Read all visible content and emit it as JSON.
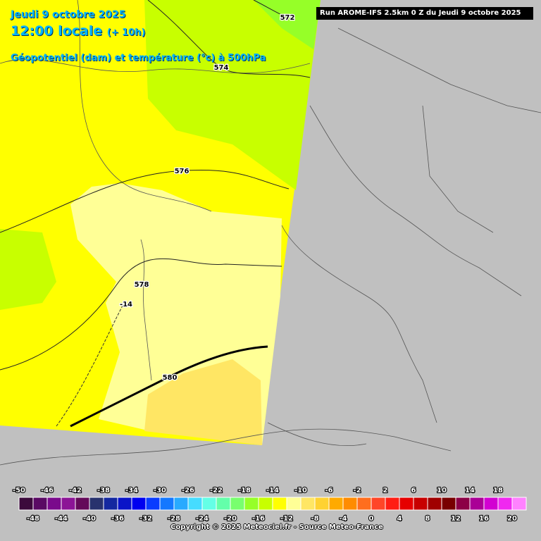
{
  "header": {
    "date": "Jeudi 9 octobre 2025",
    "time": "12:00 locale",
    "offset": "(+ 10h)",
    "variable": "Géopotentiel (dam) et température (°c) à 500hPa",
    "run": "Run AROME-IFS 2.5km 0 Z du Jeudi 9 octobre 2025"
  },
  "contours": {
    "geopotential": [
      "572",
      "574",
      "576",
      "578",
      "580"
    ],
    "temperature": [
      "-14"
    ]
  },
  "legend": {
    "scale": [
      {
        "value": -50,
        "color": "#3c0a3c"
      },
      {
        "value": -48,
        "color": "#5a0a64"
      },
      {
        "value": -46,
        "color": "#7a0a8c"
      },
      {
        "value": -44,
        "color": "#8c1496"
      },
      {
        "value": -42,
        "color": "#640a5a"
      },
      {
        "value": -40,
        "color": "#28326e"
      },
      {
        "value": -38,
        "color": "#1428a0"
      },
      {
        "value": -36,
        "color": "#0a14c8"
      },
      {
        "value": -34,
        "color": "#0000f0"
      },
      {
        "value": -32,
        "color": "#0a3cff"
      },
      {
        "value": -30,
        "color": "#1478ff"
      },
      {
        "value": -28,
        "color": "#28aaff"
      },
      {
        "value": -26,
        "color": "#46dcff"
      },
      {
        "value": -24,
        "color": "#64ffe6"
      },
      {
        "value": -22,
        "color": "#64ffaa"
      },
      {
        "value": -20,
        "color": "#78ff6e"
      },
      {
        "value": -18,
        "color": "#96ff28"
      },
      {
        "value": -16,
        "color": "#c8ff00"
      },
      {
        "value": -14,
        "color": "#ffff00"
      },
      {
        "value": -12,
        "color": "#ffff96"
      },
      {
        "value": -10,
        "color": "#ffe664"
      },
      {
        "value": -8,
        "color": "#ffd232"
      },
      {
        "value": -6,
        "color": "#ffaa00"
      },
      {
        "value": -4,
        "color": "#ff8c00"
      },
      {
        "value": -2,
        "color": "#ff6e1e"
      },
      {
        "value": 0,
        "color": "#ff4628"
      },
      {
        "value": 2,
        "color": "#ff1e14"
      },
      {
        "value": 4,
        "color": "#e60000"
      },
      {
        "value": 6,
        "color": "#c80000"
      },
      {
        "value": 8,
        "color": "#a00000"
      },
      {
        "value": 10,
        "color": "#780000"
      },
      {
        "value": 12,
        "color": "#8c0046"
      },
      {
        "value": 14,
        "color": "#aa0096"
      },
      {
        "value": 16,
        "color": "#d200d2"
      },
      {
        "value": 18,
        "color": "#f028f0"
      },
      {
        "value": 20,
        "color": "#ff82ff"
      }
    ]
  },
  "footer": "Copyright © 2025 Meteociel.fr - Source Meteo-France"
}
